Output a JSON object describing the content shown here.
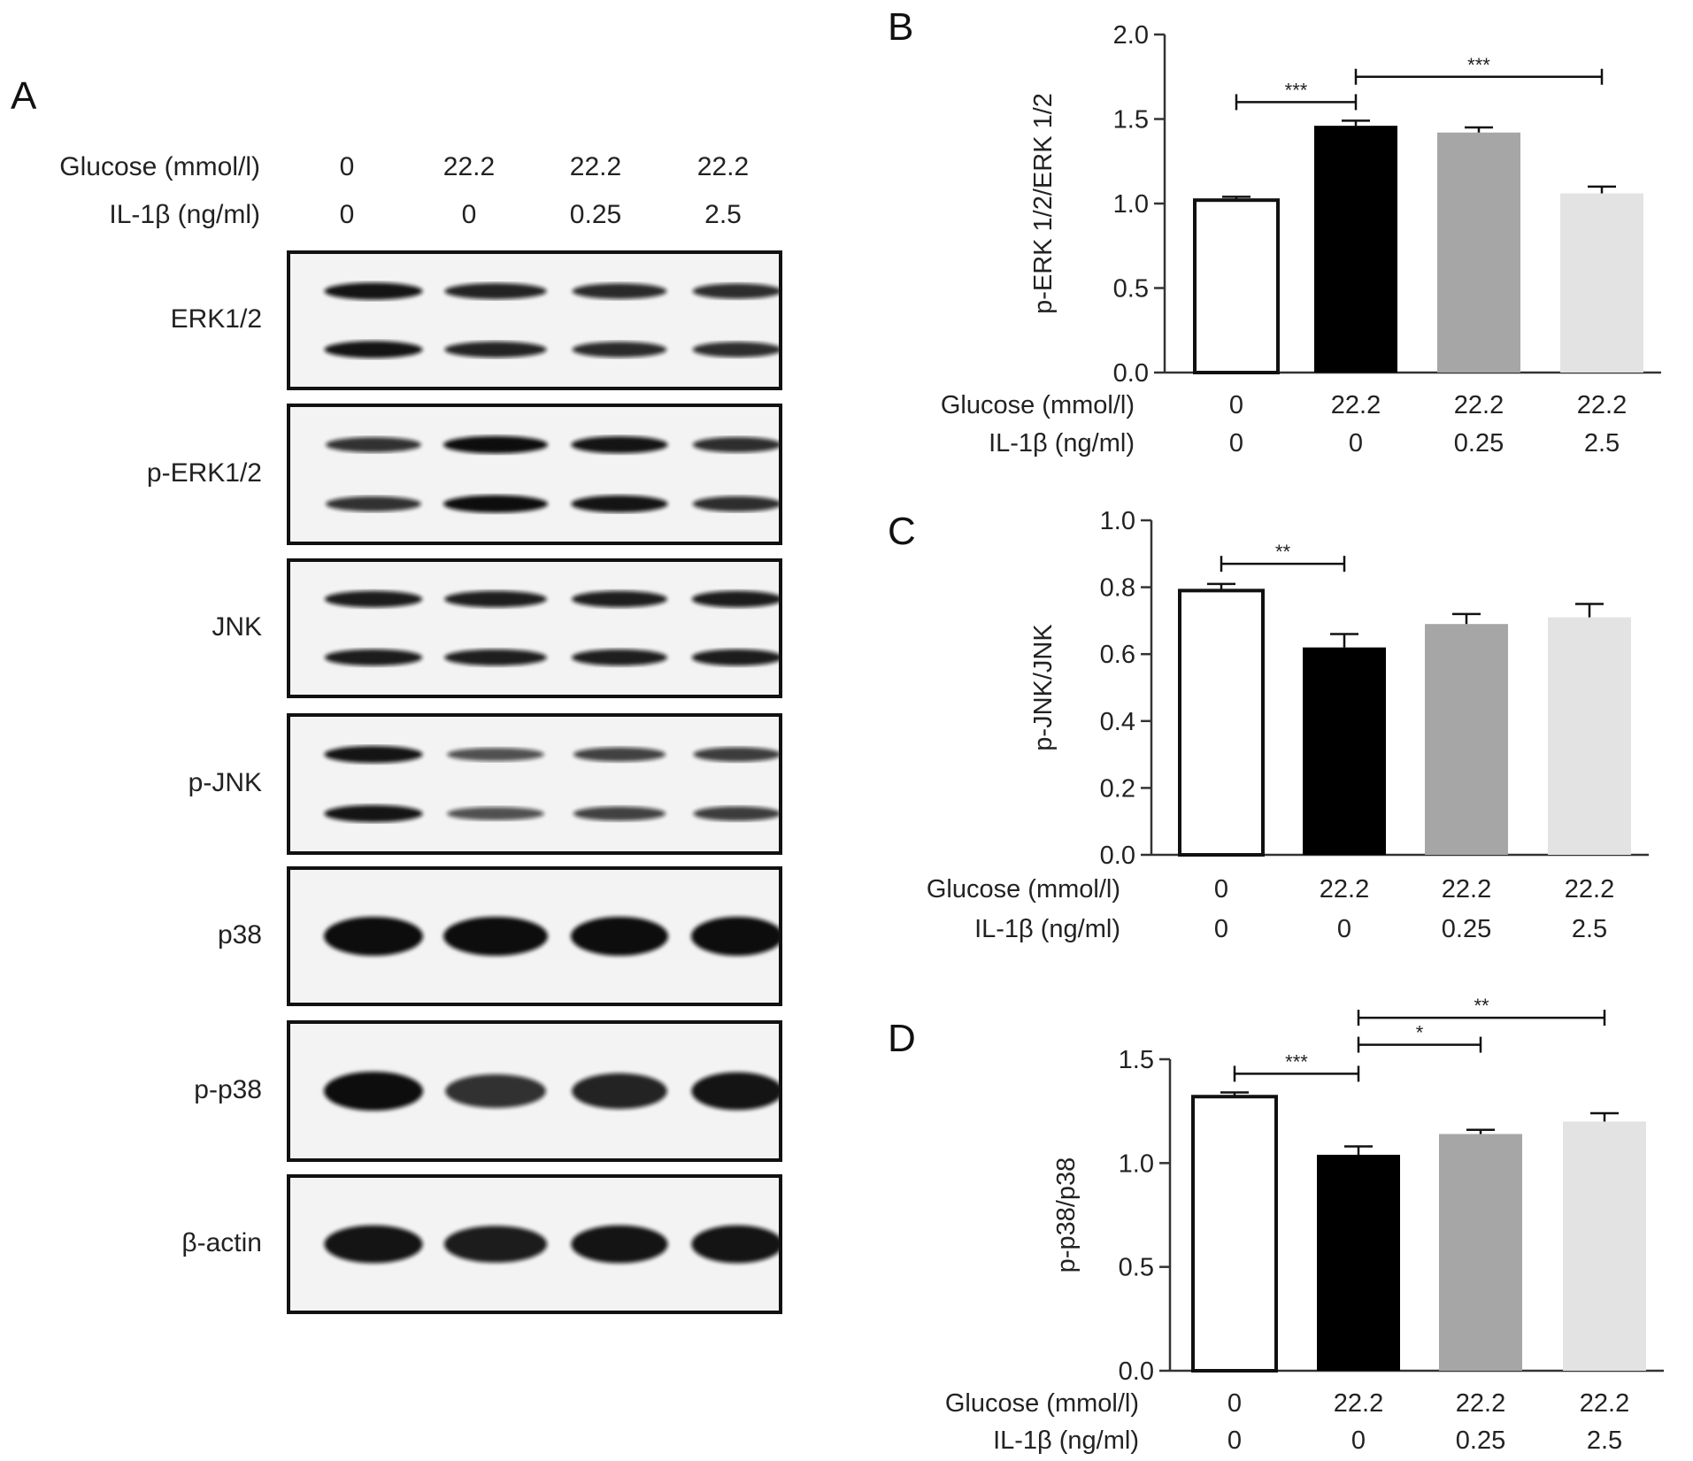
{
  "panel_a": {
    "letter": "A",
    "header": {
      "glucose_label": "Glucose (mmol/l)",
      "il1b_label": "IL-1β (ng/ml)",
      "glucose_values": [
        "0",
        "22.2",
        "22.2",
        "22.2"
      ],
      "il1b_values": [
        "0",
        "0",
        "0.25",
        "2.5"
      ]
    },
    "blots": [
      {
        "label": "ERK1/2",
        "lanes": [
          0.95,
          0.85,
          0.8,
          0.78
        ],
        "bands": 2
      },
      {
        "label": "p-ERK1/2",
        "lanes": [
          0.75,
          1.0,
          0.95,
          0.78
        ],
        "bands": 2
      },
      {
        "label": "JNK",
        "lanes": [
          0.9,
          0.88,
          0.88,
          0.9
        ],
        "bands": 2
      },
      {
        "label": "p-JNK",
        "lanes": [
          0.95,
          0.55,
          0.65,
          0.68
        ],
        "bands": 2
      },
      {
        "label": "p38",
        "lanes": [
          1.0,
          1.0,
          1.0,
          1.0
        ],
        "bands": 1
      },
      {
        "label": "p-p38",
        "lanes": [
          1.0,
          0.75,
          0.85,
          0.95
        ],
        "bands": 1
      },
      {
        "label": "β-actin",
        "lanes": [
          0.95,
          0.9,
          0.95,
          0.95
        ],
        "bands": 1
      }
    ]
  },
  "chart_data": [
    {
      "panel": "B",
      "type": "bar",
      "categories": [
        "0 / 0",
        "22.2 / 0",
        "22.2 / 0.25",
        "22.2 / 2.5"
      ],
      "glucose_values": [
        "0",
        "22.2",
        "22.2",
        "22.2"
      ],
      "il1b_values": [
        "0",
        "0",
        "0.25",
        "2.5"
      ],
      "glucose_label": "Glucose (mmol/l)",
      "il1b_label": "IL-1β (ng/ml)",
      "values": [
        1.02,
        1.46,
        1.42,
        1.06
      ],
      "errors": [
        0.02,
        0.03,
        0.03,
        0.04
      ],
      "colors": [
        "#ffffff",
        "#000000",
        "#a6a6a6",
        "#e3e3e3"
      ],
      "ylabel": "p-ERK 1/2/ERK 1/2",
      "ylim": [
        0,
        2.0
      ],
      "yticks": [
        "0.0",
        "0.5",
        "1.0",
        "1.5",
        "2.0"
      ],
      "significance": [
        {
          "from": 0,
          "to": 1,
          "label": "***",
          "y": 1.6
        },
        {
          "from": 1,
          "to": 3,
          "label": "***",
          "y": 1.75
        }
      ]
    },
    {
      "panel": "C",
      "type": "bar",
      "categories": [
        "0 / 0",
        "22.2 / 0",
        "22.2 / 0.25",
        "22.2 / 2.5"
      ],
      "glucose_values": [
        "0",
        "22.2",
        "22.2",
        "22.2"
      ],
      "il1b_values": [
        "0",
        "0",
        "0.25",
        "2.5"
      ],
      "glucose_label": "Glucose (mmol/l)",
      "il1b_label": "IL-1β (ng/ml)",
      "values": [
        0.79,
        0.62,
        0.69,
        0.71
      ],
      "errors": [
        0.02,
        0.04,
        0.03,
        0.04
      ],
      "colors": [
        "#ffffff",
        "#000000",
        "#a6a6a6",
        "#e3e3e3"
      ],
      "ylabel": "p-JNK/JNK",
      "ylim": [
        0,
        1.0
      ],
      "yticks": [
        "0.0",
        "0.2",
        "0.4",
        "0.6",
        "0.8",
        "1.0"
      ],
      "significance": [
        {
          "from": 0,
          "to": 1,
          "label": "**",
          "y": 0.87
        }
      ]
    },
    {
      "panel": "D",
      "type": "bar",
      "categories": [
        "0 / 0",
        "22.2 / 0",
        "22.2 / 0.25",
        "22.2 / 2.5"
      ],
      "glucose_values": [
        "0",
        "22.2",
        "22.2",
        "22.2"
      ],
      "il1b_values": [
        "0",
        "0",
        "0.25",
        "2.5"
      ],
      "glucose_label": "Glucose (mmol/l)",
      "il1b_label": "IL-1β (ng/ml)",
      "values": [
        1.32,
        1.04,
        1.14,
        1.2
      ],
      "errors": [
        0.02,
        0.04,
        0.02,
        0.04
      ],
      "colors": [
        "#ffffff",
        "#000000",
        "#a6a6a6",
        "#e3e3e3"
      ],
      "ylabel": "p-p38/p38",
      "ylim": [
        0,
        1.5
      ],
      "yticks": [
        "0.0",
        "0.5",
        "1.0",
        "1.5"
      ],
      "significance": [
        {
          "from": 0,
          "to": 1,
          "label": "***",
          "y": 1.43
        },
        {
          "from": 1,
          "to": 2,
          "label": "*",
          "y": 1.57
        },
        {
          "from": 1,
          "to": 3,
          "label": "**",
          "y": 1.7
        }
      ]
    }
  ]
}
